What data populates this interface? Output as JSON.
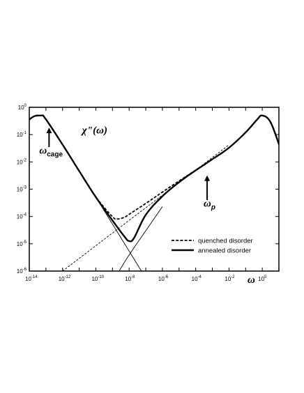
{
  "chart_data": {
    "type": "line",
    "title": "",
    "xlabel": "ω",
    "ylabel": "",
    "xscale": "log",
    "yscale": "log",
    "xlim": [
      1e-14,
      10
    ],
    "ylim": [
      1e-06,
      1
    ],
    "grid": false,
    "legend_position": "lower-right",
    "x_ticks": [
      {
        "base": "10",
        "exp": "-14"
      },
      {
        "base": "10",
        "exp": "-12"
      },
      {
        "base": "10",
        "exp": "-10"
      },
      {
        "base": "10",
        "exp": "-8"
      },
      {
        "base": "10",
        "exp": "-6"
      },
      {
        "base": "10",
        "exp": "-4"
      },
      {
        "base": "10",
        "exp": "-2"
      },
      {
        "base": "10",
        "exp": "0"
      }
    ],
    "y_ticks": [
      {
        "base": "10",
        "exp": "-6"
      },
      {
        "base": "10",
        "exp": "-5"
      },
      {
        "base": "10",
        "exp": "-4"
      },
      {
        "base": "10",
        "exp": "-3"
      },
      {
        "base": "10",
        "exp": "-2"
      },
      {
        "base": "10",
        "exp": "-1"
      },
      {
        "base": "10",
        "exp": "0"
      }
    ],
    "series": [
      {
        "name": "quenched disorder",
        "style": "dashed-thick",
        "x": [
          1e-15,
          1e-14,
          5e-14,
          1e-13,
          1e-12,
          1e-11,
          1e-10,
          1e-09,
          2e-09,
          5e-09,
          1e-08,
          1e-07,
          1e-06,
          1e-05,
          0.0001,
          0.001,
          0.01,
          0.1,
          0.5,
          1,
          3,
          10,
          30
        ],
        "y": [
          0.045,
          0.35,
          0.5,
          0.36,
          0.043,
          0.0046,
          0.00052,
          9.8e-05,
          8.1e-05,
          9.3e-05,
          0.00012,
          0.0003,
          0.00078,
          0.002,
          0.005,
          0.0125,
          0.033,
          0.12,
          0.36,
          0.5,
          0.3,
          0.045,
          0.006
        ]
      },
      {
        "name": "annealed disorder",
        "style": "solid-thick",
        "x": [
          1e-15,
          1e-14,
          5e-14,
          1e-13,
          1e-12,
          1e-11,
          1e-10,
          1e-09,
          5e-09,
          1e-08,
          2e-08,
          1e-07,
          1e-06,
          1e-05,
          0.0001,
          0.001,
          0.01,
          0.1,
          0.5,
          1,
          3,
          10,
          30
        ],
        "y": [
          0.045,
          0.35,
          0.5,
          0.36,
          0.043,
          0.0046,
          0.00051,
          7.1e-05,
          1.9e-05,
          1.26e-05,
          1.65e-05,
          0.000115,
          0.00055,
          0.0018,
          0.0049,
          0.0125,
          0.033,
          0.12,
          0.36,
          0.5,
          0.3,
          0.045,
          0.006
        ]
      },
      {
        "name": "",
        "style": "dashed-thin",
        "x": [
          1e-12,
          1e-10,
          1e-08,
          1e-06,
          0.0001,
          0.01
        ],
        "y": [
          1e-06,
          8.5e-06,
          7.2e-05,
          0.0006,
          0.005,
          0.042
        ]
      },
      {
        "name": "",
        "style": "solid-thin",
        "x": [
          1e-10,
          1e-09,
          1e-08,
          1e-07
        ],
        "y": [
          0.00051,
          5.23e-05,
          5.4e-06,
          5.5e-07
        ]
      },
      {
        "name": "",
        "style": "solid-thin",
        "x": [
          2.5e-09,
          1e-08,
          1e-07,
          1e-06
        ],
        "y": [
          1e-06,
          3.9e-06,
          3e-05,
          0.00023
        ]
      }
    ],
    "annotations": [
      {
        "id": "chi",
        "text": "χ\"(ω)",
        "x": 1.5e-11,
        "y": 0.11
      },
      {
        "id": "omega_cage",
        "base": "ω",
        "sub": "cage",
        "x": 4e-14,
        "y": 0.02,
        "arrow_from_y": 0.035,
        "arrow_to_y": 0.18
      },
      {
        "id": "omega_p",
        "base": "ω",
        "sub": "p",
        "x": 0.0003,
        "y": 0.00023,
        "arrow_from_y": 0.0004,
        "arrow_to_y": 0.0032
      }
    ]
  }
}
